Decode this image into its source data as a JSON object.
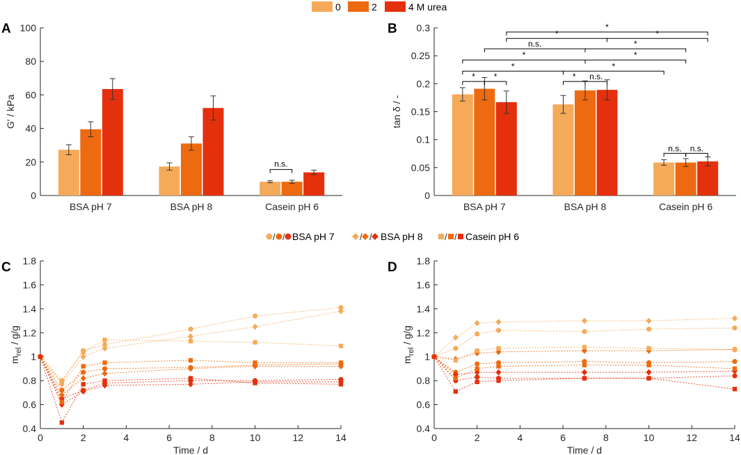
{
  "legend_top": {
    "items": [
      {
        "label": "0",
        "color": "#F5AA5A"
      },
      {
        "label": "2",
        "color": "#EE6A10"
      },
      {
        "label": "4 M urea",
        "color": "#E5300E"
      }
    ]
  },
  "legend_mid": {
    "items": [
      {
        "label": "BSA pH 7",
        "marker": "circle"
      },
      {
        "label": "BSA pH 8",
        "marker": "diamond"
      },
      {
        "label": "Casein pH 6",
        "marker": "square"
      }
    ],
    "colors": [
      "#F5AA5A",
      "#EE6A10",
      "#E5300E"
    ]
  },
  "chart_data": [
    {
      "panel": "A",
      "type": "bar",
      "ylabel": "G′ / kPa",
      "ylim": [
        0,
        100
      ],
      "yticks": [
        "0",
        "20",
        "40",
        "60",
        "80",
        "100"
      ],
      "categories": [
        "BSA pH 7",
        "BSA pH 8",
        "Casein pH 6"
      ],
      "series": [
        {
          "name": "0",
          "values": [
            27.3,
            17.3,
            8.2
          ],
          "errors": [
            3.0,
            2.2,
            0.6
          ]
        },
        {
          "name": "2",
          "values": [
            39.5,
            31.0,
            8.2
          ],
          "errors": [
            4.5,
            4.0,
            0.9
          ]
        },
        {
          "name": "4 M urea",
          "values": [
            63.5,
            52.2,
            13.8
          ],
          "errors": [
            6.2,
            7.2,
            1.3
          ]
        }
      ],
      "annotations": [
        {
          "text": "n.s.",
          "category": 2,
          "from_series": 0,
          "to_series": 1,
          "y": 15.5
        }
      ]
    },
    {
      "panel": "B",
      "type": "bar",
      "ylabel": "tan δ / -",
      "ylim": [
        0,
        0.3
      ],
      "yticks": [
        "0",
        "0.05",
        "0.1",
        "0.15",
        "0.2",
        "0.25",
        "0.3"
      ],
      "categories": [
        "BSA pH 7",
        "BSA pH 8",
        "Casein pH 6"
      ],
      "series": [
        {
          "name": "0",
          "values": [
            0.181,
            0.163,
            0.059
          ],
          "errors": [
            0.012,
            0.016,
            0.005
          ]
        },
        {
          "name": "2",
          "values": [
            0.191,
            0.188,
            0.059
          ],
          "errors": [
            0.02,
            0.017,
            0.007
          ]
        },
        {
          "name": "4 M urea",
          "values": [
            0.167,
            0.189,
            0.061
          ],
          "errors": [
            0.02,
            0.018,
            0.008
          ]
        }
      ],
      "annotations": [
        {
          "text": "*",
          "a": [
            0,
            0
          ],
          "b": [
            0,
            1
          ],
          "y": 0.204
        },
        {
          "text": "*",
          "a": [
            0,
            1
          ],
          "b": [
            0,
            2
          ],
          "y": 0.204
        },
        {
          "text": "*",
          "a": [
            1,
            0
          ],
          "b": [
            1,
            1
          ],
          "y": 0.204
        },
        {
          "text": "n.s.",
          "a": [
            1,
            1
          ],
          "b": [
            1,
            2
          ],
          "y": 0.204
        },
        {
          "text": "*",
          "a": [
            0,
            0
          ],
          "b": [
            1,
            0
          ],
          "y": 0.2225
        },
        {
          "text": "*",
          "a": [
            1,
            0
          ],
          "b": [
            2,
            0
          ],
          "y": 0.2225
        },
        {
          "text": "*",
          "a": [
            0,
            0
          ],
          "b": [
            1,
            1
          ],
          "y": 0.2425
        },
        {
          "text": "*",
          "a": [
            1,
            1
          ],
          "b": [
            2,
            1
          ],
          "y": 0.2425
        },
        {
          "text": "n.s.",
          "a": [
            0,
            1
          ],
          "b": [
            1,
            1
          ],
          "y": 0.2625
        },
        {
          "text": "*",
          "a": [
            1,
            1
          ],
          "b": [
            2,
            1
          ],
          "y": 0.2625
        },
        {
          "text": "*",
          "a": [
            0,
            2
          ],
          "b": [
            1,
            2
          ],
          "y": 0.281
        },
        {
          "text": "*",
          "a": [
            1,
            2
          ],
          "b": [
            2,
            2
          ],
          "y": 0.281
        },
        {
          "text": "*",
          "a": [
            0,
            2
          ],
          "b": [
            2,
            2
          ],
          "y": 0.2925
        },
        {
          "text": "n.s.",
          "a": [
            2,
            0
          ],
          "b": [
            2,
            1
          ],
          "y": 0.0755
        },
        {
          "text": "n.s.",
          "a": [
            2,
            1
          ],
          "b": [
            2,
            2
          ],
          "y": 0.0755
        }
      ]
    },
    {
      "panel": "C",
      "type": "line",
      "xlabel": "Time / d",
      "ylabel": "m",
      "ylabel_sub": "rel",
      "ylabel_tail": " / g/g",
      "xlim": [
        0,
        14
      ],
      "ylim": [
        0.4,
        1.8
      ],
      "xticks": [
        "0",
        "2",
        "4",
        "6",
        "8",
        "10",
        "12",
        "14"
      ],
      "yticks": [
        "0.4",
        "0.6",
        "0.8",
        "1",
        "1.2",
        "1.4",
        "1.6",
        "1.8"
      ],
      "x": [
        0,
        1,
        2,
        3,
        7,
        10,
        14
      ],
      "series": [
        {
          "name": "BSA pH 7 / 0",
          "marker": "circle",
          "color": 0,
          "values": [
            1,
            0.8,
            1.05,
            1.1,
            1.23,
            1.34,
            1.41
          ]
        },
        {
          "name": "BSA pH 7 / 2",
          "marker": "circle",
          "color": 1,
          "values": [
            1,
            0.72,
            0.87,
            0.9,
            0.91,
            0.93,
            0.94
          ]
        },
        {
          "name": "BSA pH 7 / 4 M urea",
          "marker": "circle",
          "color": 2,
          "values": [
            1,
            0.65,
            0.72,
            0.78,
            0.8,
            0.8,
            0.81
          ]
        },
        {
          "name": "BSA pH 8 / 0",
          "marker": "diamond",
          "color": 0,
          "values": [
            1,
            0.77,
            1.0,
            1.07,
            1.17,
            1.25,
            1.38
          ]
        },
        {
          "name": "BSA pH 8 / 2",
          "marker": "diamond",
          "color": 1,
          "values": [
            1,
            0.68,
            0.82,
            0.86,
            0.9,
            0.92,
            0.92
          ]
        },
        {
          "name": "BSA pH 8 / 4 M urea",
          "marker": "diamond",
          "color": 2,
          "values": [
            1,
            0.6,
            0.71,
            0.76,
            0.77,
            0.79,
            0.79
          ]
        },
        {
          "name": "Casein pH 6 / 0",
          "marker": "square",
          "color": 0,
          "values": [
            1,
            0.79,
            1.04,
            1.14,
            1.13,
            1.12,
            1.09
          ]
        },
        {
          "name": "Casein pH 6 / 2",
          "marker": "square",
          "color": 1,
          "values": [
            1,
            0.62,
            0.92,
            0.95,
            0.97,
            0.95,
            0.95
          ]
        },
        {
          "name": "Casein pH 6 / 4 M urea",
          "marker": "square",
          "color": 2,
          "values": [
            1,
            0.45,
            0.77,
            0.8,
            0.82,
            0.78,
            0.77
          ]
        }
      ]
    },
    {
      "panel": "D",
      "type": "line",
      "xlabel": "Time / d",
      "ylabel": "m",
      "ylabel_sub": "rel",
      "ylabel_tail": " / g/g",
      "xlim": [
        0,
        14
      ],
      "ylim": [
        0.4,
        1.8
      ],
      "xticks": [
        "0",
        "2",
        "4",
        "6",
        "8",
        "10",
        "12",
        "14"
      ],
      "yticks": [
        "0.4",
        "0.6",
        "0.8",
        "1",
        "1.2",
        "1.4",
        "1.6",
        "1.8"
      ],
      "x": [
        0,
        1,
        2,
        3,
        7,
        10,
        14
      ],
      "series": [
        {
          "name": "BSA pH 7 / 0",
          "marker": "circle",
          "color": 0,
          "values": [
            1,
            1.07,
            1.19,
            1.22,
            1.21,
            1.23,
            1.24
          ]
        },
        {
          "name": "BSA pH 7 / 2",
          "marker": "circle",
          "color": 1,
          "values": [
            1,
            0.87,
            0.94,
            0.95,
            0.96,
            0.95,
            0.96
          ]
        },
        {
          "name": "BSA pH 7 / 4 M urea",
          "marker": "circle",
          "color": 2,
          "values": [
            1,
            0.8,
            0.83,
            0.82,
            0.82,
            0.82,
            0.84
          ]
        },
        {
          "name": "BSA pH 8 / 0",
          "marker": "diamond",
          "color": 0,
          "values": [
            1,
            1.16,
            1.28,
            1.29,
            1.3,
            1.3,
            1.32
          ]
        },
        {
          "name": "BSA pH 8 / 2",
          "marker": "diamond",
          "color": 1,
          "values": [
            1,
            0.98,
            1.03,
            1.04,
            1.05,
            1.05,
            1.06
          ]
        },
        {
          "name": "BSA pH 8 / 4 M urea",
          "marker": "diamond",
          "color": 2,
          "values": [
            1,
            0.85,
            0.87,
            0.87,
            0.87,
            0.87,
            0.88
          ]
        },
        {
          "name": "Casein pH 6 / 0",
          "marker": "square",
          "color": 0,
          "values": [
            1,
            0.97,
            1.05,
            1.07,
            1.08,
            1.07,
            1.06
          ]
        },
        {
          "name": "Casein pH 6 / 2",
          "marker": "square",
          "color": 1,
          "values": [
            1,
            0.82,
            0.9,
            0.92,
            0.93,
            0.93,
            0.9
          ]
        },
        {
          "name": "Casein pH 6 / 4 M urea",
          "marker": "square",
          "color": 2,
          "values": [
            1,
            0.71,
            0.79,
            0.8,
            0.82,
            0.82,
            0.73
          ]
        }
      ]
    }
  ]
}
